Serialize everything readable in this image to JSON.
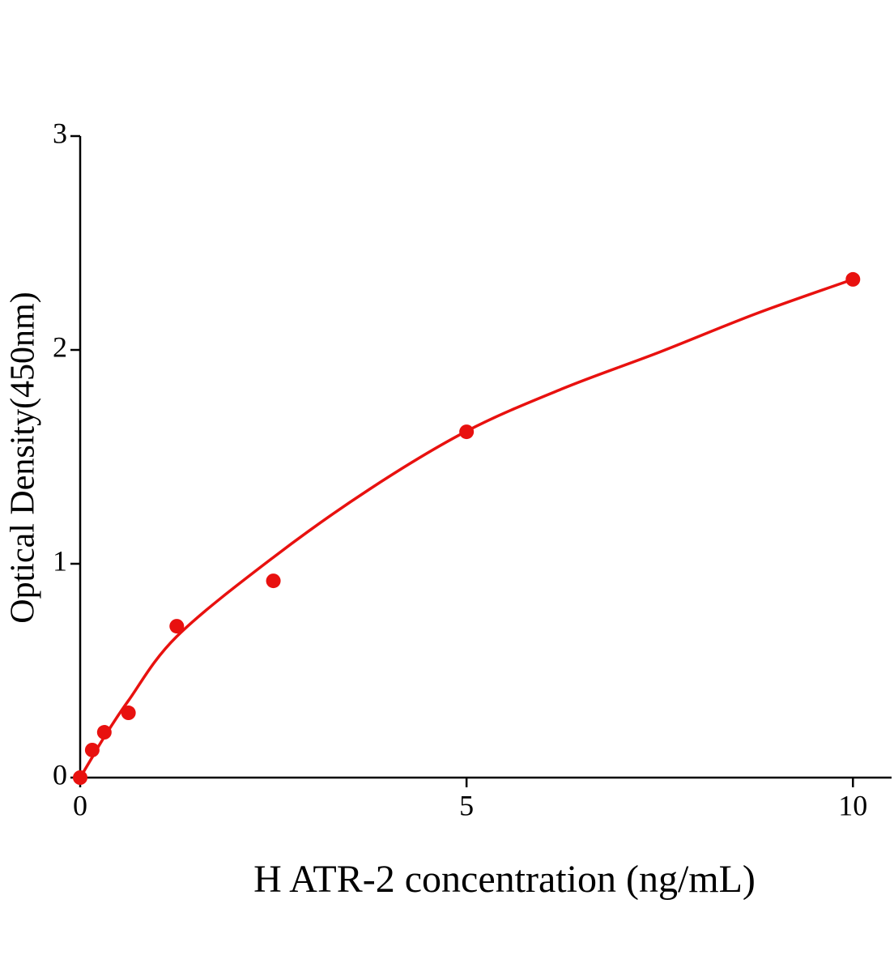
{
  "chart_data": {
    "type": "scatter",
    "x_label": "H ATR-2 concentration (ng/mL)",
    "y_label": "Optical Density(450nm)",
    "color": "#e8110f",
    "x": [
      0,
      0.156,
      0.3125,
      0.625,
      1.25,
      2.5,
      5,
      10
    ],
    "values": [
      0,
      0.129,
      0.212,
      0.303,
      0.708,
      0.92,
      1.617,
      2.33
    ],
    "fit": {
      "x": [
        0,
        0.156,
        0.3125,
        0.625,
        1.25,
        2.5,
        3.75,
        5,
        6.25,
        7.5,
        8.75,
        10
      ],
      "values": [
        0,
        0.095,
        0.19,
        0.36,
        0.66,
        1.03,
        1.35,
        1.62,
        1.82,
        1.99,
        2.17,
        2.33
      ]
    },
    "xlim": [
      0,
      10.5
    ],
    "ylim": [
      0,
      3
    ],
    "xticks": [
      0,
      5,
      10
    ],
    "yticks": [
      0,
      1,
      2,
      3
    ]
  }
}
